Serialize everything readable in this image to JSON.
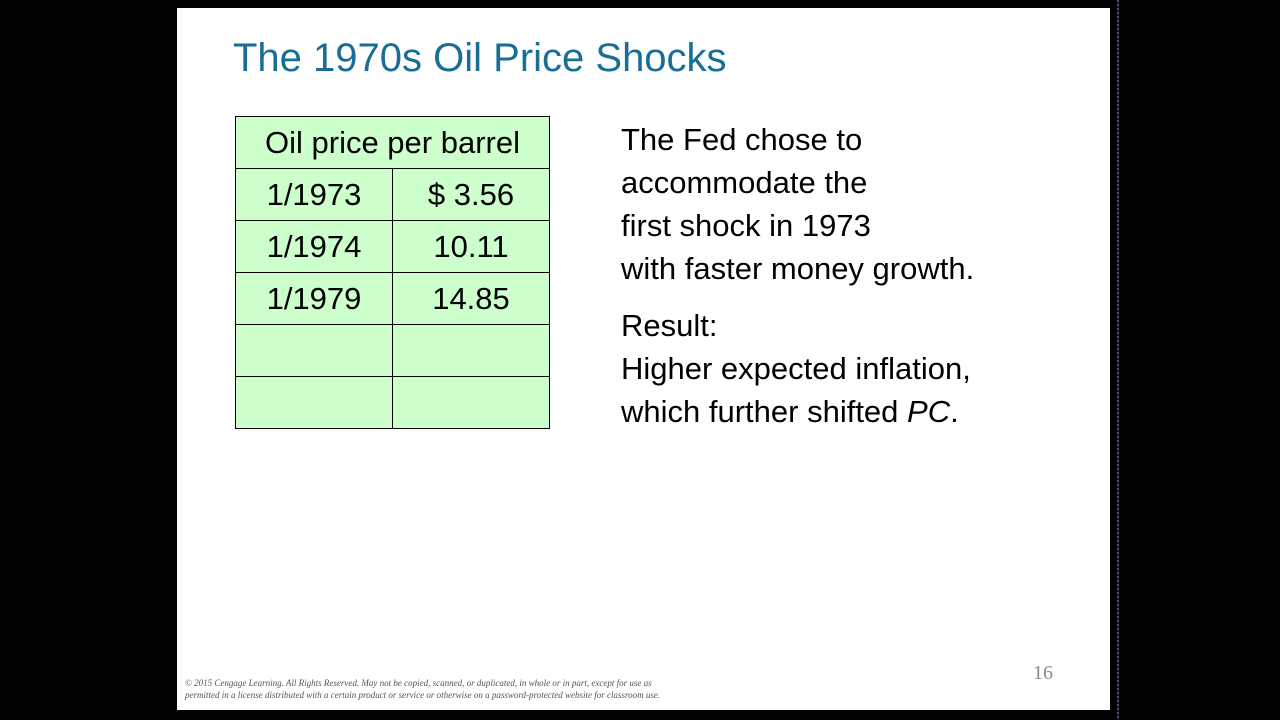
{
  "slide": {
    "title": "The 1970s Oil Price Shocks",
    "table": {
      "header": "Oil price per barrel",
      "rows": [
        {
          "date": "1/1973",
          "price": "$ 3.56"
        },
        {
          "date": "1/1974",
          "price": "10.11"
        },
        {
          "date": "1/1979",
          "price": "14.85"
        },
        {
          "date": "",
          "price": ""
        },
        {
          "date": "",
          "price": ""
        }
      ]
    },
    "paragraph1": {
      "line1": "The Fed chose to",
      "line2": "accommodate the",
      "line3": "first shock in 1973",
      "line4": "with faster money growth."
    },
    "paragraph2": {
      "line1": "Result:",
      "line2": "Higher expected inflation,",
      "line3_before": "which further shifted ",
      "line3_italic": "PC",
      "line3_after": "."
    },
    "page_number": "16",
    "copyright": {
      "line1": "© 2015 Cengage Learning. All Rights Reserved. May not be copied, scanned, or duplicated, in whole or in part, except for use as",
      "line2": "permitted in a license distributed with a certain product or service or otherwise on a password-protected website for classroom use."
    }
  },
  "colors": {
    "title": "#1a6e96",
    "table_fill": "#ccffcc",
    "background": "#000000"
  }
}
